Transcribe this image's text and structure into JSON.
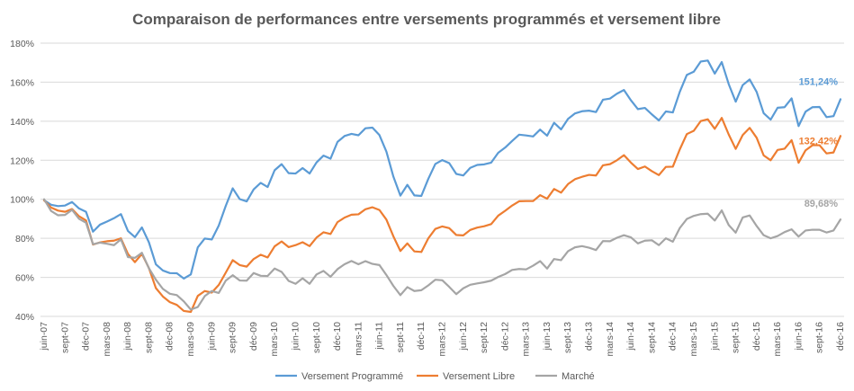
{
  "chart_data": {
    "type": "line",
    "title": "Comparaison de performances entre  versements programmés et versement libre",
    "xlabel": "",
    "ylabel": "",
    "ylim": [
      40,
      180
    ],
    "y_ticks": [
      "40%",
      "60%",
      "80%",
      "100%",
      "120%",
      "140%",
      "160%",
      "180%"
    ],
    "y_tick_values": [
      40,
      60,
      80,
      100,
      120,
      140,
      160,
      180
    ],
    "grid": true,
    "legend_position": "bottom",
    "x": [
      "juin-07",
      "juil-07",
      "août-07",
      "sept-07",
      "oct-07",
      "nov-07",
      "déc-07",
      "janv-08",
      "févr-08",
      "mars-08",
      "avr-08",
      "mai-08",
      "juin-08",
      "juil-08",
      "août-08",
      "sept-08",
      "oct-08",
      "nov-08",
      "déc-08",
      "janv-09",
      "févr-09",
      "mars-09",
      "avr-09",
      "mai-09",
      "juin-09",
      "juil-09",
      "août-09",
      "sept-09",
      "oct-09",
      "nov-09",
      "déc-09",
      "janv-10",
      "févr-10",
      "mars-10",
      "avr-10",
      "mai-10",
      "juin-10",
      "juil-10",
      "août-10",
      "sept-10",
      "oct-10",
      "nov-10",
      "déc-10",
      "janv-11",
      "févr-11",
      "mars-11",
      "avr-11",
      "mai-11",
      "juin-11",
      "juil-11",
      "août-11",
      "sept-11",
      "oct-11",
      "nov-11",
      "déc-11",
      "janv-12",
      "févr-12",
      "mars-12",
      "avr-12",
      "mai-12",
      "juin-12",
      "juil-12",
      "août-12",
      "sept-12",
      "oct-12",
      "nov-12",
      "déc-12",
      "janv-13",
      "févr-13",
      "mars-13",
      "avr-13",
      "mai-13",
      "juin-13",
      "juil-13",
      "août-13",
      "sept-13",
      "oct-13",
      "nov-13",
      "déc-13",
      "janv-14",
      "févr-14",
      "mars-14",
      "avr-14",
      "mai-14",
      "juin-14",
      "juil-14",
      "août-14",
      "sept-14",
      "oct-14",
      "nov-14",
      "déc-14",
      "janv-15",
      "févr-15",
      "mars-15",
      "avr-15",
      "mai-15",
      "juin-15",
      "juil-15",
      "août-15",
      "sept-15",
      "oct-15",
      "nov-15",
      "déc-15",
      "janv-16",
      "févr-16",
      "mars-16",
      "avr-16",
      "mai-16",
      "juin-16",
      "juil-16",
      "août-16",
      "sept-16",
      "oct-16",
      "nov-16",
      "déc-16"
    ],
    "x_tick_labels": [
      "juin-07",
      "sept-07",
      "déc-07",
      "mars-08",
      "juin-08",
      "sept-08",
      "déc-08",
      "mars-09",
      "juin-09",
      "sept-09",
      "déc-09",
      "mars-10",
      "juin-10",
      "sept-10",
      "déc-10",
      "mars-11",
      "juin-11",
      "sept-11",
      "déc-11",
      "mars-12",
      "juin-12",
      "sept-12",
      "déc-12",
      "mars-13",
      "juin-13",
      "sept-13",
      "déc-13",
      "mars-14",
      "juin-14",
      "sept-14",
      "déc-14",
      "mars-15",
      "juin-15",
      "sept-15",
      "déc-15",
      "mars-16",
      "juin-16",
      "sept-16",
      "déc-16"
    ],
    "series": [
      {
        "name": "Versement Programmé",
        "color": "#5B9BD5",
        "end_label": "151,24%",
        "values": [
          99.5,
          97.2,
          96.5,
          96.8,
          98.6,
          95.3,
          93.6,
          83.4,
          87.0,
          88.6,
          90.3,
          92.4,
          83.8,
          80.6,
          85.6,
          78.0,
          66.7,
          63.5,
          62.2,
          62.1,
          59.4,
          61.5,
          75.4,
          79.9,
          79.4,
          86.5,
          96.6,
          105.6,
          100.1,
          98.9,
          105.1,
          108.4,
          106.3,
          114.9,
          118.0,
          113.4,
          113.2,
          116.0,
          113.2,
          118.9,
          122.4,
          120.8,
          129.4,
          132.4,
          133.5,
          132.8,
          136.4,
          136.7,
          132.9,
          124.4,
          111.6,
          101.9,
          107.4,
          102.0,
          101.7,
          110.5,
          118.1,
          120.1,
          118.5,
          113.0,
          112.2,
          116.1,
          117.6,
          117.9,
          118.8,
          123.8,
          126.5,
          129.9,
          133.1,
          132.7,
          132.2,
          135.7,
          132.6,
          139.2,
          135.8,
          141.2,
          144.0,
          145.1,
          145.4,
          144.7,
          151.0,
          151.6,
          154.1,
          156.0,
          150.7,
          146.2,
          146.8,
          143.5,
          140.4,
          145.0,
          144.5,
          155.1,
          163.7,
          165.4,
          170.6,
          171.1,
          164.4,
          170.3,
          159.0,
          150.0,
          158.5,
          161.4,
          155.0,
          144.1,
          140.8,
          146.9,
          147.2,
          151.7,
          137.5,
          144.9,
          147.2,
          147.3,
          142.1,
          142.6,
          151.24
        ]
      },
      {
        "name": "Versement Libre",
        "color": "#ED7D31",
        "end_label": "132,42%",
        "values": [
          99.5,
          95.8,
          94.2,
          93.6,
          95.0,
          91.3,
          89.2,
          76.8,
          77.9,
          78.5,
          78.8,
          80.0,
          72.0,
          67.8,
          72.0,
          64.8,
          54.5,
          50.2,
          47.3,
          45.9,
          42.8,
          42.3,
          50.5,
          53.0,
          52.2,
          56.1,
          62.4,
          68.8,
          66.3,
          65.5,
          69.4,
          71.6,
          70.2,
          75.9,
          78.4,
          75.5,
          76.5,
          78.0,
          76.0,
          80.4,
          83.1,
          82.2,
          88.3,
          90.6,
          92.1,
          92.3,
          94.9,
          95.9,
          94.5,
          89.6,
          81.0,
          73.5,
          77.4,
          73.3,
          73.0,
          80.0,
          84.8,
          86.1,
          85.2,
          81.7,
          81.5,
          84.3,
          85.5,
          86.2,
          87.3,
          91.6,
          94.1,
          96.8,
          99.0,
          99.1,
          99.1,
          102.1,
          100.3,
          105.3,
          103.4,
          107.8,
          110.3,
          111.5,
          112.5,
          112.2,
          117.4,
          118.0,
          120.0,
          122.6,
          118.8,
          115.5,
          116.8,
          114.4,
          112.4,
          116.6,
          116.7,
          125.6,
          133.4,
          135.1,
          140.1,
          141.0,
          136.1,
          141.7,
          133.2,
          125.8,
          132.9,
          136.6,
          131.5,
          122.5,
          120.0,
          125.3,
          125.9,
          130.3,
          118.7,
          125.1,
          127.7,
          127.7,
          123.5,
          124.0,
          132.42
        ]
      },
      {
        "name": "Marché",
        "color": "#A5A5A5",
        "end_label": "89,68%",
        "values": [
          100.0,
          94.0,
          91.8,
          92.0,
          94.6,
          90.0,
          88.0,
          77.0,
          77.8,
          77.2,
          76.5,
          79.5,
          70.4,
          70.0,
          72.6,
          64.7,
          58.8,
          54.1,
          51.6,
          50.9,
          47.7,
          43.5,
          44.8,
          50.4,
          53.0,
          52.0,
          58.3,
          61.1,
          58.4,
          58.3,
          62.2,
          60.8,
          60.7,
          64.5,
          62.8,
          58.2,
          56.7,
          59.5,
          56.7,
          61.5,
          63.3,
          60.3,
          64.2,
          66.7,
          68.4,
          66.7,
          68.3,
          66.9,
          66.3,
          61.2,
          55.6,
          50.9,
          55.0,
          53.0,
          53.4,
          55.9,
          58.8,
          58.5,
          55.1,
          51.4,
          54.4,
          56.2,
          56.9,
          57.5,
          58.3,
          60.2,
          61.7,
          63.8,
          64.3,
          64.1,
          66.0,
          68.3,
          64.5,
          69.4,
          68.8,
          73.4,
          75.4,
          76.0,
          75.2,
          74.0,
          78.6,
          78.5,
          80.3,
          81.6,
          80.5,
          77.4,
          78.8,
          79.0,
          76.5,
          80.0,
          78.3,
          85.3,
          89.9,
          91.5,
          92.4,
          92.6,
          89.1,
          94.3,
          86.8,
          82.9,
          90.7,
          91.7,
          86.3,
          81.6,
          80.0,
          81.2,
          83.2,
          84.6,
          80.9,
          84.0,
          84.4,
          84.4,
          83.0,
          84.0,
          89.68
        ]
      }
    ]
  }
}
